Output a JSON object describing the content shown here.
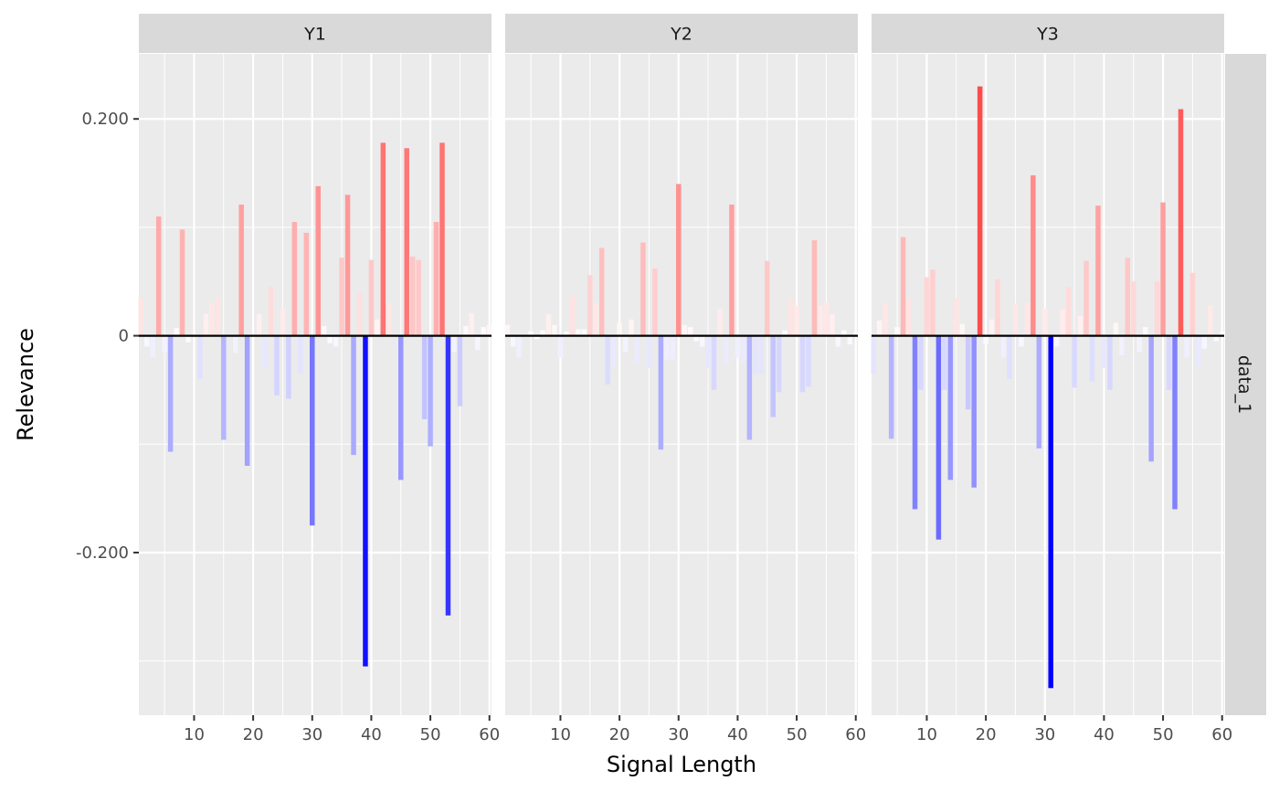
{
  "chart_data": {
    "type": "bar",
    "xlabel": "Signal Length",
    "ylabel": "Relevance",
    "xlim": [
      1,
      60
    ],
    "ylim": [
      -0.35,
      0.26
    ],
    "x_ticks": [
      10,
      20,
      30,
      40,
      50,
      60
    ],
    "y_ticks": [
      -0.2,
      0,
      0.2
    ],
    "y_tick_labels": [
      "-0.200",
      "0",
      "0.200"
    ],
    "row_strip": "data_1",
    "colors": {
      "positive": "#ff0000",
      "negative": "#0000ff",
      "neutral": "#ffffff",
      "panel_bg": "#ebebeb",
      "strip_bg": "#d9d9d9",
      "grid": "#ffffff"
    },
    "panels": [
      {
        "name": "Y1",
        "values": [
          0.035,
          -0.01,
          -0.02,
          0.11,
          -0.015,
          -0.107,
          0.007,
          0.098,
          -0.006,
          0,
          -0.04,
          0.02,
          0.03,
          0.035,
          -0.096,
          0,
          -0.016,
          0.121,
          -0.12,
          0,
          0.02,
          -0.03,
          0.045,
          -0.055,
          0.025,
          -0.058,
          0.105,
          -0.035,
          0.095,
          -0.175,
          0.138,
          0.009,
          -0.007,
          -0.01,
          0.072,
          0.13,
          -0.11,
          0.04,
          -0.305,
          0.07,
          0.015,
          0.178,
          0.03,
          0,
          -0.133,
          0.173,
          0.073,
          0.07,
          -0.077,
          -0.102,
          0.105,
          0.178,
          -0.258,
          -0.015,
          -0.065,
          0.009,
          0.021,
          -0.013,
          0.008,
          0.01
        ]
      },
      {
        "name": "Y2",
        "values": [
          0.01,
          -0.01,
          -0.02,
          0,
          0.004,
          -0.003,
          0.005,
          0.02,
          0.01,
          -0.02,
          0.004,
          0.037,
          0.006,
          0.006,
          0.056,
          0.03,
          0.081,
          -0.045,
          -0.028,
          0.012,
          -0.015,
          0.015,
          -0.025,
          0.086,
          -0.03,
          0.062,
          -0.105,
          -0.022,
          -0.022,
          0.14,
          0.01,
          0.008,
          -0.005,
          -0.01,
          -0.03,
          -0.05,
          0.025,
          -0.025,
          0.121,
          -0.02,
          -0.025,
          -0.096,
          -0.035,
          -0.035,
          0.069,
          -0.075,
          -0.052,
          0.005,
          0.034,
          0.028,
          -0.052,
          -0.047,
          0.088,
          0.028,
          0.031,
          0.02,
          -0.01,
          0.005,
          -0.008,
          0.003
        ]
      },
      {
        "name": "Y3",
        "values": [
          -0.035,
          0.014,
          0.03,
          -0.095,
          0.008,
          0.091,
          0.034,
          -0.16,
          -0.05,
          0.054,
          0.061,
          -0.188,
          -0.05,
          -0.133,
          0.035,
          0.011,
          -0.068,
          -0.14,
          0.23,
          -0.008,
          0.015,
          0.052,
          -0.02,
          -0.04,
          0.03,
          -0.01,
          0.03,
          0.148,
          -0.104,
          0.025,
          -0.325,
          -0.01,
          0.024,
          0.045,
          -0.048,
          0.018,
          0.069,
          -0.042,
          0.12,
          -0.03,
          -0.05,
          0.012,
          -0.018,
          0.072,
          0.05,
          -0.015,
          0.008,
          -0.116,
          0.05,
          0.123,
          -0.05,
          -0.16,
          0.209,
          -0.02,
          0.058,
          -0.028,
          -0.012,
          0.028,
          -0.005,
          0.004
        ]
      }
    ]
  }
}
